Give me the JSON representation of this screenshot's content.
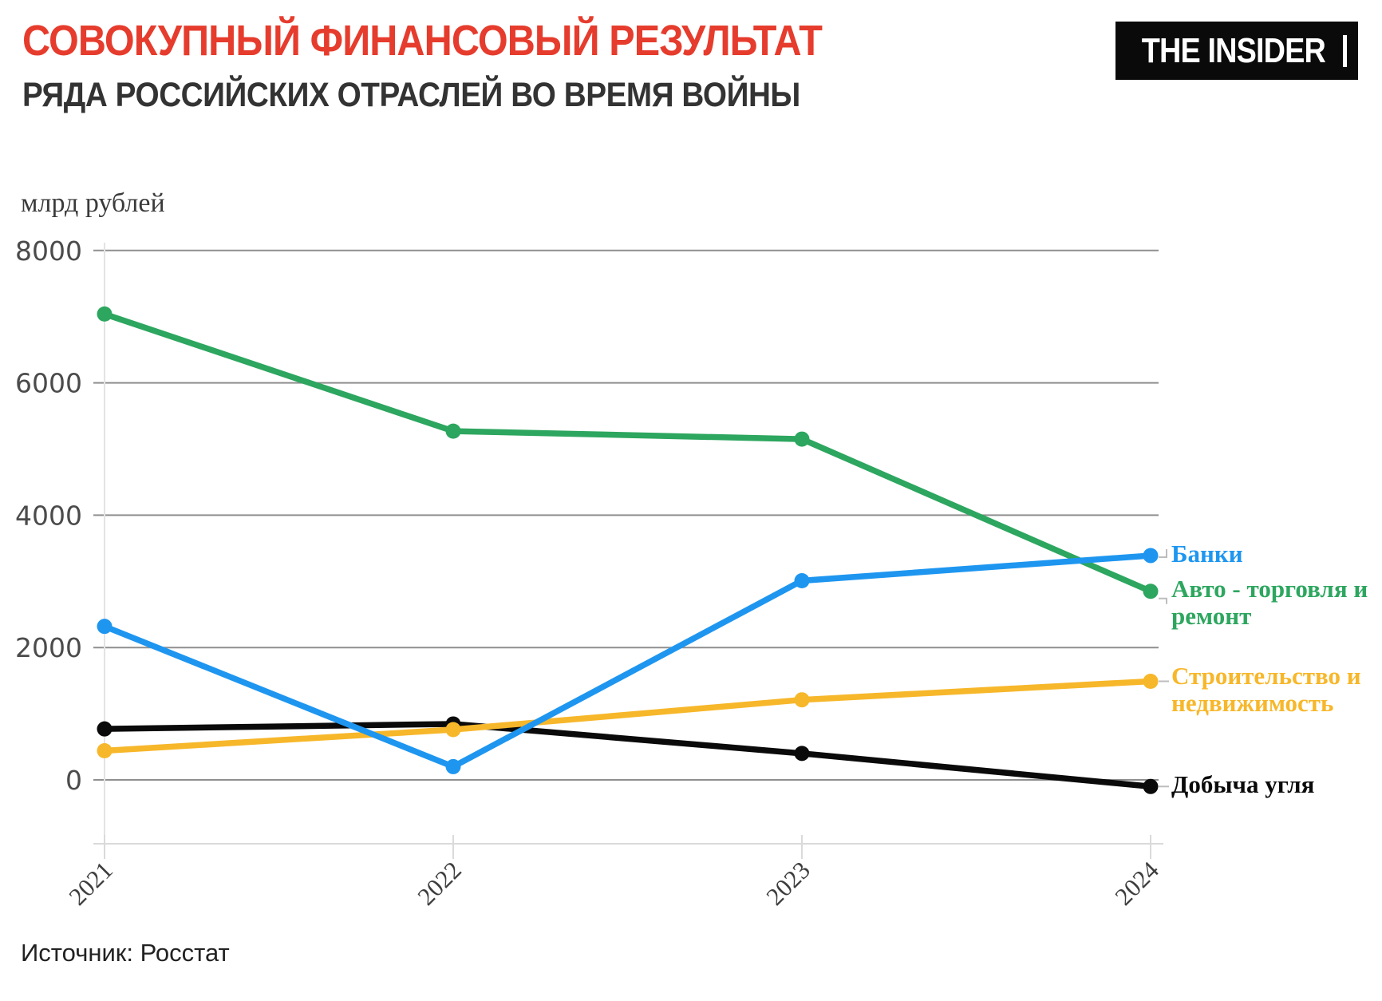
{
  "header": {
    "title": "СОВОКУПНЫЙ ФИНАНСОВЫЙ РЕЗУЛЬТАТ",
    "subtitle": "РЯДА РОССИЙСКИХ ОТРАСЛЕЙ ВО ВРЕМЯ ВОЙНЫ",
    "logo_text": "THE INSIDER"
  },
  "footer": {
    "source": "Источник: Росстат"
  },
  "colors": {
    "title_red": "#e63c2d",
    "subtitle_gray": "#333333",
    "logo_bg": "#0a0a0a",
    "logo_fg": "#ffffff",
    "gridline": "#8f8f8f",
    "axis_light": "#dadada",
    "y_tick_label": "#4b4b4b",
    "x_tick_label": "#3d3d3d"
  },
  "chart_data": {
    "type": "line",
    "unit_label": "млрд рублей",
    "x": [
      "2021",
      "2022",
      "2023",
      "2024"
    ],
    "yticks": [
      0,
      2000,
      4000,
      6000,
      8000
    ],
    "ylim": [
      -1000,
      8000
    ],
    "grid": true,
    "legend_position": "right-end-labels",
    "series": [
      {
        "id": "banks",
        "name": "Банки",
        "color": "#1e96f0",
        "values": [
          2320,
          200,
          3010,
          3390
        ]
      },
      {
        "id": "auto-trade-repair",
        "name": "Авто - торговля и ремонт",
        "color": "#2da65f",
        "values": [
          7040,
          5270,
          5150,
          2850
        ]
      },
      {
        "id": "construction-real-estate",
        "name": "Строительство и недвижимость",
        "color": "#f7b72a",
        "values": [
          440,
          760,
          1210,
          1490
        ]
      },
      {
        "id": "coal-mining",
        "name": "Добыча угля",
        "color": "#0a0a0a",
        "values": [
          770,
          845,
          400,
          -100
        ]
      }
    ]
  }
}
